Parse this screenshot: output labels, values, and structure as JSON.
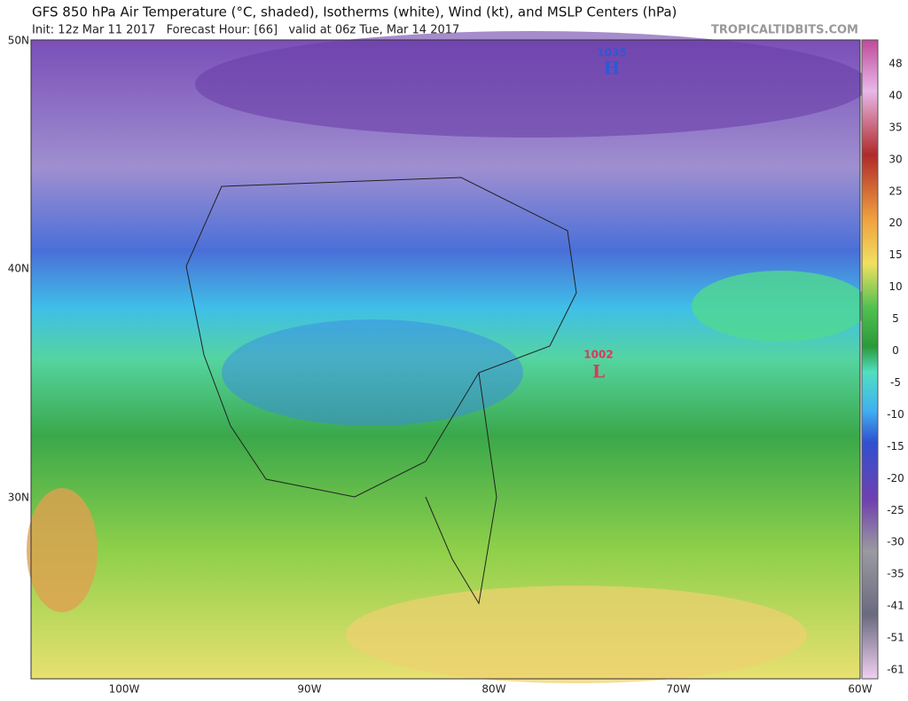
{
  "header": {
    "title": "GFS 850 hPa Air Temperature (°C, shaded), Isotherms (white), Wind (kt), and MSLP Centers (hPa)",
    "subtitle": "Init: 12z Mar 11 2017   Forecast Hour: [66]   valid at 06z Tue, Mar 14 2017",
    "credit": "TROPICALTIDBITS.COM"
  },
  "map": {
    "lat_labels": [
      "50N",
      "40N",
      "30N"
    ],
    "lon_labels": [
      "100W",
      "90W",
      "80W",
      "70W",
      "60W"
    ],
    "centers": [
      {
        "pressure": "1035",
        "symbol": "H"
      },
      {
        "pressure": "1002",
        "symbol": "L"
      }
    ]
  },
  "colorbar": {
    "ticks": [
      "48",
      "40",
      "35",
      "30",
      "25",
      "20",
      "15",
      "10",
      "5",
      "0",
      "-5",
      "-10",
      "-15",
      "-20",
      "-25",
      "-30",
      "-35",
      "-41",
      "-51",
      "-61"
    ]
  }
}
